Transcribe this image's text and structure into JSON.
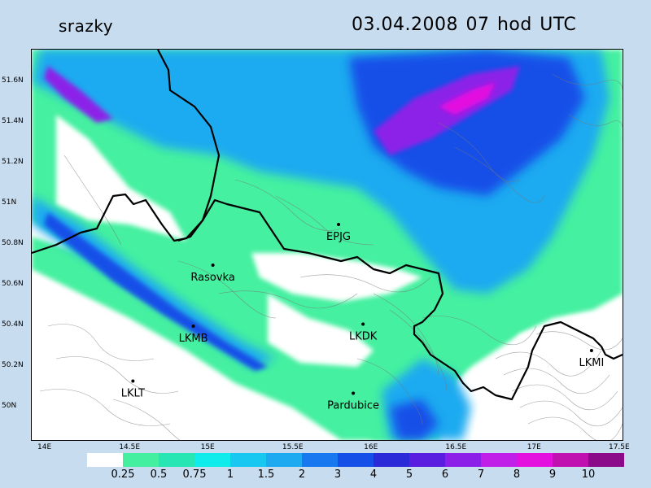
{
  "title": {
    "variable": "srazky",
    "datetime": "03.04.2008   07 hod UTC"
  },
  "axes": {
    "x_ticks": [
      "14E",
      "14.5E",
      "15E",
      "15.5E",
      "16E",
      "16.5E",
      "17E",
      "17.5E"
    ],
    "y_ticks": [
      "51.6N",
      "51.4N",
      "51.2N",
      "51N",
      "50.8N",
      "50.6N",
      "50.4N",
      "50.2N",
      "50N"
    ]
  },
  "stations": [
    {
      "name": "EPJG",
      "lon": 15.78,
      "lat": 50.9
    },
    {
      "name": "Rasovka",
      "lon": 15.01,
      "lat": 50.7
    },
    {
      "name": "LKMB",
      "lon": 14.89,
      "lat": 50.4
    },
    {
      "name": "LKDK",
      "lon": 15.93,
      "lat": 50.41
    },
    {
      "name": "LKMI",
      "lon": 17.33,
      "lat": 50.28
    },
    {
      "name": "LKLT",
      "lon": 14.52,
      "lat": 50.13
    },
    {
      "name": "Pardubice",
      "lon": 15.87,
      "lat": 50.07
    }
  ],
  "colorbar": {
    "labels": [
      "0.25",
      "0.5",
      "0.75",
      "1",
      "1.5",
      "2",
      "3",
      "4",
      "5",
      "6",
      "7",
      "8",
      "9",
      "10"
    ],
    "colors": [
      "#ffffff",
      "#44f0a0",
      "#28e6b4",
      "#10ecec",
      "#18c8f0",
      "#1eaaf0",
      "#1878f0",
      "#1450e8",
      "#2a2ad8",
      "#5a1ee0",
      "#8c20e8",
      "#c020e8",
      "#e410e0",
      "#c010b0",
      "#8a0a8a"
    ]
  }
}
